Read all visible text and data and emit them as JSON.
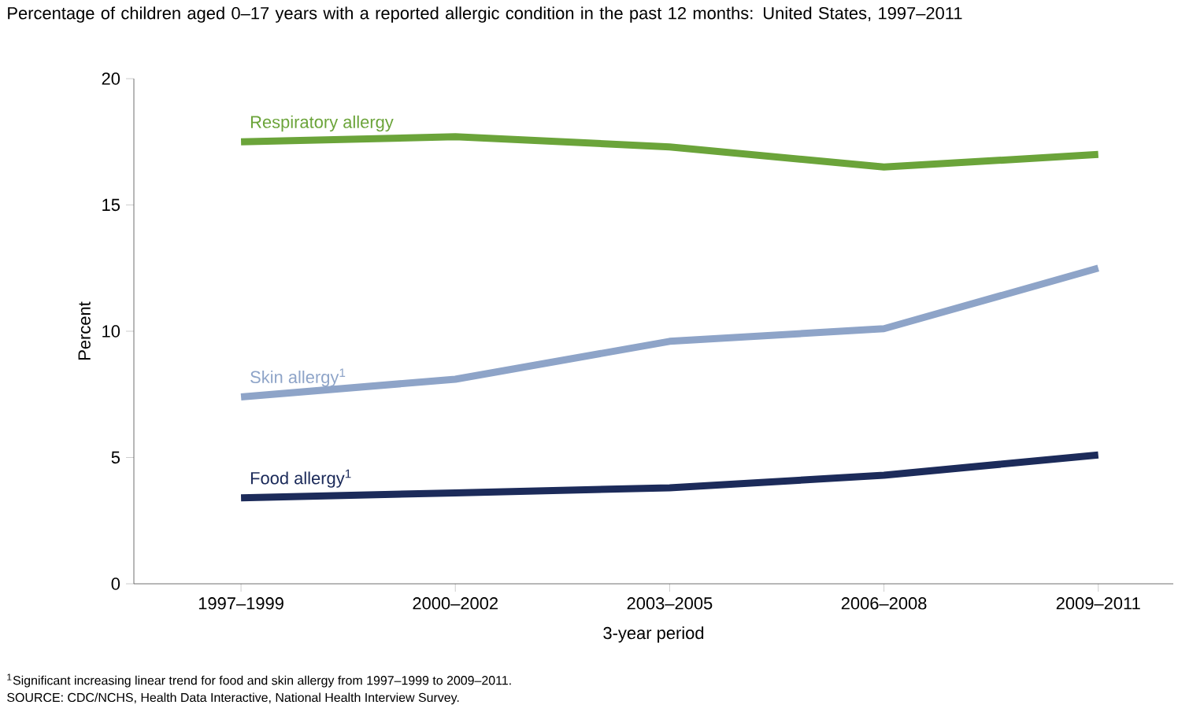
{
  "chart_data": {
    "type": "line",
    "title": "Percentage of children aged 0–17 years with a reported allergic condition in the past 12 months: United States, 1997–2011",
    "xlabel": "3-year period",
    "ylabel": "Percent",
    "categories": [
      "1997–1999",
      "2000–2002",
      "2003–2005",
      "2006–2008",
      "2009–2011"
    ],
    "series": [
      {
        "name": "Respiratory allergy",
        "color": "#6ba43a",
        "values": [
          17.5,
          17.7,
          17.3,
          16.5,
          17.0
        ]
      },
      {
        "name": "Skin allergy$^{1}$",
        "color": "#8ea4c8",
        "values": [
          7.4,
          8.1,
          9.6,
          10.1,
          12.5
        ]
      },
      {
        "name": "Food allergy$^{1}$",
        "color": "#1c2b5a",
        "values": [
          3.4,
          3.6,
          3.8,
          4.3,
          5.1
        ]
      }
    ],
    "ylim": [
      0,
      20
    ],
    "yticks": [
      0,
      5,
      10,
      15,
      20
    ],
    "grid": false,
    "legend": false,
    "marker": "none",
    "line_style": "solid",
    "annotations": [
      "$^{1}$Significant increasing linear trend for food and skin allergy from 1997–1999 to 2009–2011.",
      "SOURCE: CDC/NCHS, Health Data Interactive, National Health Interview Survey."
    ]
  }
}
